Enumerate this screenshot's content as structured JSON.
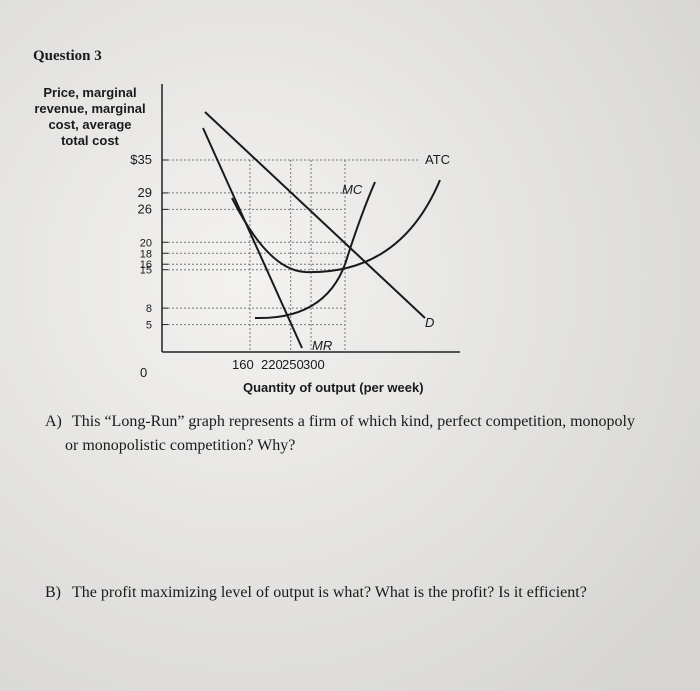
{
  "question_title": "Question 3",
  "graph": {
    "y_axis_label": [
      "Price, marginal",
      "revenue, marginal",
      "cost, average",
      "total cost"
    ],
    "y_ticks": [
      {
        "value": 35,
        "label": "$35"
      },
      29,
      26,
      20,
      18,
      16,
      15,
      8,
      5
    ],
    "origin_label": 0,
    "x_ticks": [
      160,
      220,
      250,
      300
    ],
    "x_axis_label": "Quantity of output (per week)",
    "curve_labels": {
      "atc": "ATC",
      "mc": "MC",
      "demand": "D",
      "mr": "MR"
    }
  },
  "questions": [
    {
      "label": "A)",
      "text": [
        "This “Long-Run” graph represents a firm of which kind, perfect competition, monopoly",
        "or monopolistic competition? Why?"
      ]
    },
    {
      "label": "B)",
      "text": [
        "The profit maximizing level of output is what? What is the profit? Is it efficient?"
      ]
    }
  ]
}
